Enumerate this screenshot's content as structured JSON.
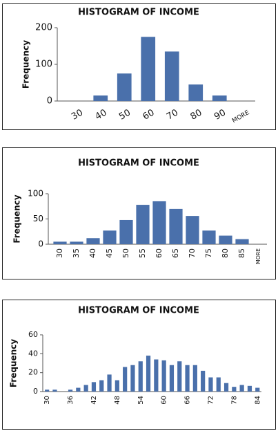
{
  "chart_data": [
    {
      "type": "bar",
      "title": "HISTOGRAM OF INCOME",
      "ylabel": "Frequency",
      "categories": [
        30,
        40,
        50,
        60,
        70,
        80,
        90,
        "MORE"
      ],
      "values": [
        0,
        15,
        75,
        175,
        135,
        45,
        15,
        0
      ],
      "color": "#4a70ab",
      "ylim": [
        0,
        200
      ],
      "yticks": [
        0,
        100,
        200
      ],
      "grid": false
    },
    {
      "type": "bar",
      "title": "HISTOGRAM OF INCOME",
      "ylabel": "Frequency",
      "categories": [
        30,
        35,
        40,
        45,
        50,
        55,
        60,
        65,
        70,
        75,
        80,
        85,
        "MORE"
      ],
      "values": [
        5,
        5,
        12,
        27,
        48,
        78,
        85,
        70,
        56,
        27,
        17,
        10,
        0
      ],
      "color": "#4a70ab",
      "ylim": [
        0,
        100
      ],
      "yticks": [
        0,
        50,
        100
      ],
      "grid": false
    },
    {
      "type": "bar",
      "title": "HISTOGRAM OF INCOME",
      "ylabel": "Frequency",
      "categories": [
        30,
        null,
        null,
        36,
        null,
        null,
        42,
        null,
        null,
        48,
        null,
        null,
        54,
        null,
        null,
        60,
        null,
        null,
        66,
        null,
        null,
        72,
        null,
        null,
        78,
        null,
        null,
        84
      ],
      "values": [
        2,
        2,
        0,
        2,
        4,
        7,
        10,
        12,
        18,
        12,
        26,
        28,
        32,
        38,
        34,
        33,
        28,
        32,
        28,
        28,
        22,
        15,
        15,
        9,
        5,
        7,
        6,
        4
      ],
      "color": "#4a70ab",
      "ylim": [
        0,
        60
      ],
      "yticks": [
        0,
        20,
        40,
        60
      ],
      "grid": false
    }
  ]
}
